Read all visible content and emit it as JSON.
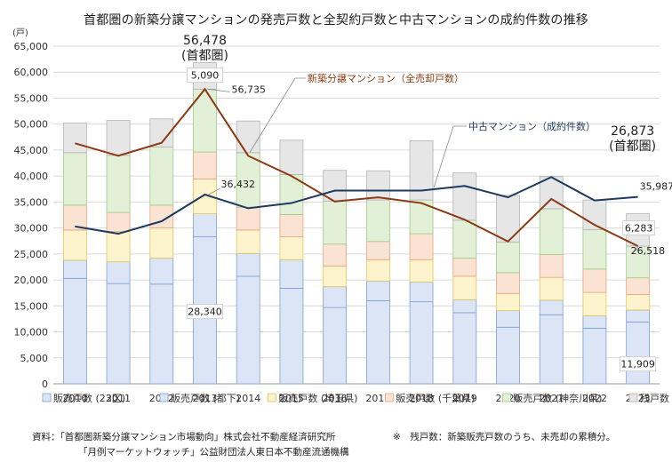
{
  "title": "首都圏の新築分譲マンションの発売戸数と全契約戸数と中古マンションの成約件数の推移",
  "unit_label": "(戸)",
  "chart_data": {
    "type": "bar",
    "stacked": true,
    "categories": [
      "2010",
      "2011",
      "2012",
      "2013",
      "2014",
      "2015",
      "2016",
      "2017",
      "2018",
      "2019",
      "2020",
      "2021",
      "2022",
      "2023"
    ],
    "ylim": [
      0,
      65000
    ],
    "yticks": [
      "0",
      "5,000",
      "10,000",
      "15,000",
      "20,000",
      "25,000",
      "30,000",
      "35,000",
      "40,000",
      "45,000",
      "50,000",
      "55,000",
      "60,000",
      "65,000"
    ],
    "grid": true,
    "legend_position": "bottom",
    "series": [
      {
        "name": "販売戸数 (23区)",
        "color": "#dbe5f6",
        "values": [
          20300,
          19300,
          19200,
          28340,
          20700,
          18400,
          14700,
          16000,
          15800,
          13700,
          10900,
          13300,
          10700,
          11909
        ]
      },
      {
        "name": "販売戸数 (都下)",
        "color": "#dbe5f6",
        "values": [
          3500,
          4200,
          5000,
          4400,
          4400,
          5500,
          4000,
          3800,
          3800,
          2500,
          3200,
          2800,
          2400,
          2300
        ]
      },
      {
        "name": "販売戸数 (埼玉県)",
        "color": "#fdf3cc",
        "values": [
          5800,
          5800,
          5800,
          6700,
          4500,
          4400,
          4000,
          4100,
          4300,
          4500,
          3300,
          4400,
          4500,
          3000
        ]
      },
      {
        "name": "販売戸数 (千葉県)",
        "color": "#fbe3d3",
        "values": [
          4800,
          3700,
          4400,
          5200,
          4400,
          4300,
          4200,
          3500,
          5000,
          3500,
          4000,
          4400,
          4500,
          3200
        ]
      },
      {
        "name": "販売戸数 (神奈川県)",
        "color": "#e2f0d8",
        "values": [
          10100,
          11000,
          11200,
          12100,
          10500,
          7700,
          8300,
          8000,
          6500,
          7300,
          5900,
          8800,
          7600,
          6100
        ]
      },
      {
        "name": "残戸数 (首都圏)",
        "color": "#e6e6e6",
        "values": [
          5700,
          6700,
          5400,
          5090,
          6100,
          6600,
          5900,
          5600,
          11400,
          9100,
          9000,
          6200,
          5700,
          6283
        ]
      }
    ],
    "lines": [
      {
        "name": "新築分譲マンション（全売却戸数）",
        "color": "#8b3a12",
        "values": [
          46300,
          43900,
          46400,
          56735,
          43900,
          40000,
          35100,
          35900,
          34800,
          31600,
          27400,
          35600,
          30600,
          26518
        ]
      },
      {
        "name": "中古マンション（成約件数）",
        "color": "#1f3a5f",
        "values": [
          30300,
          28900,
          31300,
          36432,
          33800,
          34800,
          37200,
          37200,
          37200,
          38100,
          35900,
          39800,
          35300,
          35987
        ]
      }
    ],
    "data_labels": {
      "top_2013": "56,478",
      "top_2013_sub": "(首都圏)",
      "top_2023": "26,873",
      "top_2023_sub": "(首都圏)",
      "remain_2013": "5,090",
      "new_2013": "56,735",
      "used_2013": "36,432",
      "ward_2013": "28,340",
      "remain_2023": "6,283",
      "new_2023": "26,518",
      "used_2023": "35,987",
      "ward_2023": "11,909"
    },
    "callouts": {
      "new_line": "新築分譲マンション（全売却戸数）",
      "used_line": "中古マンション（成約件数）"
    }
  },
  "footnotes": {
    "source_label": "資料：",
    "source_1": "「首都圏新築分譲マンション市場動向」株式会社不動産経済研究所",
    "source_2": "「月例マーケットウォッチ」公益財団法人東日本不動産流通機構",
    "note": "※　残戸数：新築販売戸数のうち、未売却の累積分。"
  }
}
